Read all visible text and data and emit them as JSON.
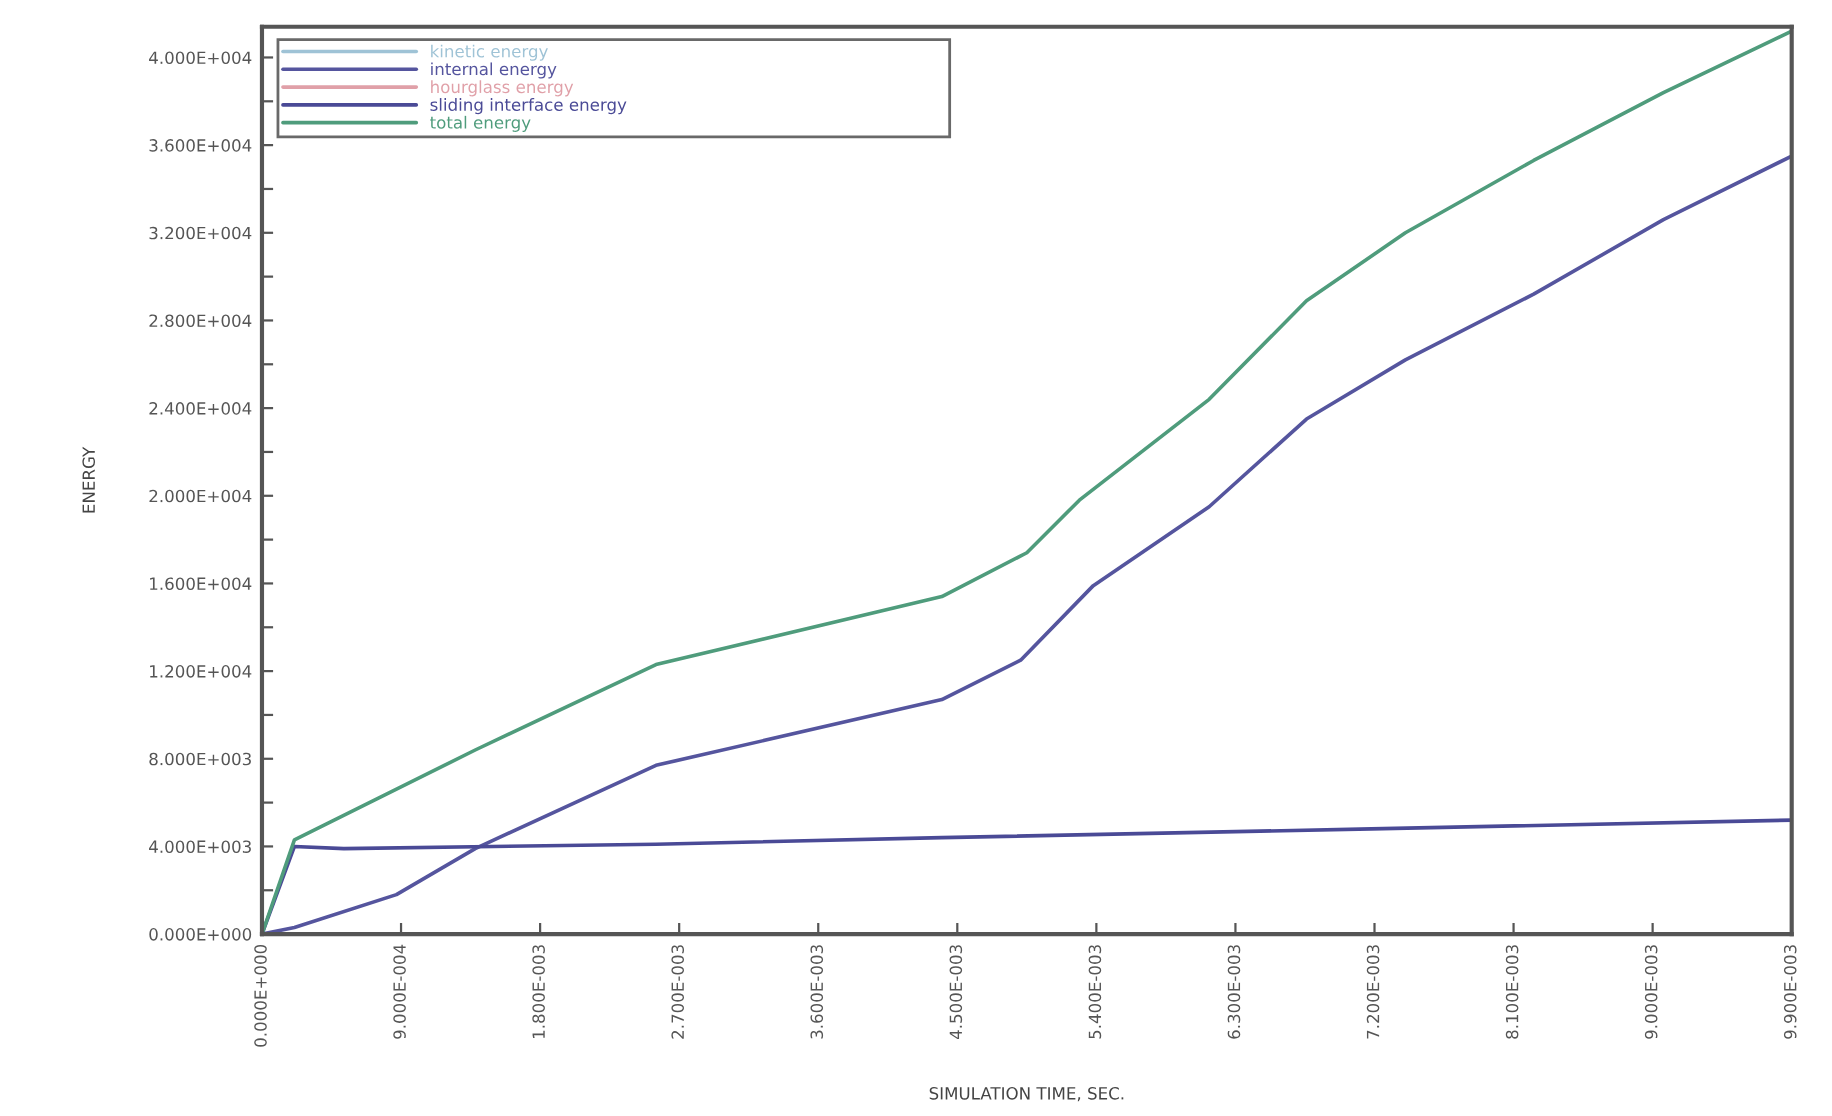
{
  "chart_data": {
    "type": "line",
    "xlabel": "SIMULATION TIME, SEC.",
    "ylabel": "ENERGY",
    "xlim": [
      0,
      0.0099
    ],
    "ylim": [
      0,
      41400
    ],
    "xticks": [
      {
        "value": 0,
        "label": "0.000E+000"
      },
      {
        "value": 0.0009,
        "label": "9.000E-004"
      },
      {
        "value": 0.0018,
        "label": "1.800E-003"
      },
      {
        "value": 0.0027,
        "label": "2.700E-003"
      },
      {
        "value": 0.0036,
        "label": "3.600E-003"
      },
      {
        "value": 0.0045,
        "label": "4.500E-003"
      },
      {
        "value": 0.0054,
        "label": "5.400E-003"
      },
      {
        "value": 0.0063,
        "label": "6.300E-003"
      },
      {
        "value": 0.0072,
        "label": "7.200E-003"
      },
      {
        "value": 0.0081,
        "label": "8.100E-003"
      },
      {
        "value": 0.009,
        "label": "9.000E-003"
      },
      {
        "value": 0.0099,
        "label": "9.900E-003"
      }
    ],
    "yticks": [
      {
        "value": 0,
        "label": "0.000E+000"
      },
      {
        "value": 2000,
        "label": null
      },
      {
        "value": 4000,
        "label": "4.000E+003"
      },
      {
        "value": 6000,
        "label": null
      },
      {
        "value": 8000,
        "label": "8.000E+003"
      },
      {
        "value": 10000,
        "label": null
      },
      {
        "value": 12000,
        "label": "1.200E+004"
      },
      {
        "value": 14000,
        "label": null
      },
      {
        "value": 16000,
        "label": "1.600E+004"
      },
      {
        "value": 18000,
        "label": null
      },
      {
        "value": 20000,
        "label": "2.000E+004"
      },
      {
        "value": 22000,
        "label": null
      },
      {
        "value": 24000,
        "label": "2.400E+004"
      },
      {
        "value": 26000,
        "label": null
      },
      {
        "value": 28000,
        "label": "2.800E+004"
      },
      {
        "value": 30000,
        "label": null
      },
      {
        "value": 32000,
        "label": "3.200E+004"
      },
      {
        "value": 34000,
        "label": null
      },
      {
        "value": 36000,
        "label": "3.600E+004"
      },
      {
        "value": 38000,
        "label": null
      },
      {
        "value": 40000,
        "label": "4.000E+004"
      }
    ],
    "grid": false,
    "legend": "top left",
    "marker": "none",
    "line_style": "solid",
    "series": [
      {
        "name": "kinetic energy",
        "color": "#9fc3d6"
      },
      {
        "name": "internal energy",
        "color": "#55559e",
        "x": [
          0,
          0.00021,
          0.00087,
          0.00138,
          0.00255,
          0.0044,
          0.00491,
          0.00538,
          0.00613,
          0.00676,
          0.0074,
          0.00823,
          0.00907,
          0.0099
        ],
        "values": [
          0,
          300,
          1800,
          3900,
          7700,
          10700,
          12500,
          15900,
          19500,
          23500,
          26200,
          29200,
          32600,
          35500
        ]
      },
      {
        "name": "hourglass energy",
        "color": "#e0a0a8"
      },
      {
        "name": "sliding interface energy",
        "color": "#4a4a96",
        "x": [
          0,
          0.00021,
          0.00053,
          0.00255,
          0.0044,
          0.00718,
          0.0099
        ],
        "values": [
          0,
          4000,
          3900,
          4100,
          4400,
          4800,
          5200
        ]
      },
      {
        "name": "total energy",
        "color": "#4f9c7c",
        "x": [
          0,
          0.00021,
          0.00138,
          0.00255,
          0.0044,
          0.00495,
          0.00529,
          0.00613,
          0.00676,
          0.0074,
          0.00823,
          0.00907,
          0.0099
        ],
        "values": [
          0,
          4300,
          8400,
          12300,
          15400,
          17400,
          19800,
          24400,
          28900,
          32000,
          35300,
          38400,
          41200
        ]
      }
    ]
  }
}
